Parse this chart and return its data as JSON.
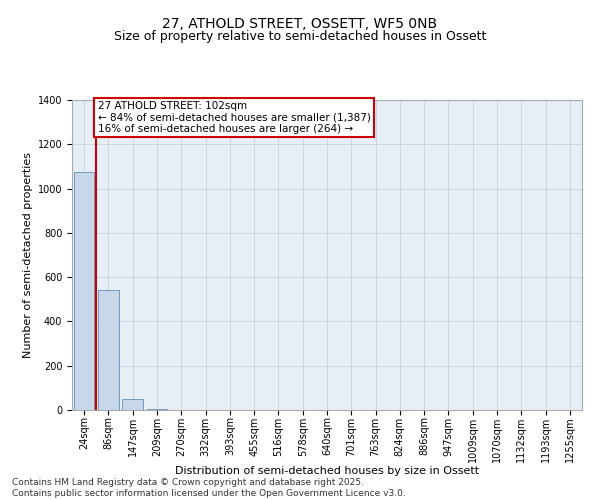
{
  "title_line1": "27, ATHOLD STREET, OSSETT, WF5 0NB",
  "title_line2": "Size of property relative to semi-detached houses in Ossett",
  "xlabel": "Distribution of semi-detached houses by size in Ossett",
  "ylabel": "Number of semi-detached properties",
  "categories": [
    "24sqm",
    "86sqm",
    "147sqm",
    "209sqm",
    "270sqm",
    "332sqm",
    "393sqm",
    "455sqm",
    "516sqm",
    "578sqm",
    "640sqm",
    "701sqm",
    "763sqm",
    "824sqm",
    "886sqm",
    "947sqm",
    "1009sqm",
    "1070sqm",
    "1132sqm",
    "1193sqm",
    "1255sqm"
  ],
  "values": [
    1075,
    540,
    50,
    5,
    2,
    1,
    0,
    0,
    0,
    0,
    0,
    0,
    0,
    0,
    0,
    0,
    0,
    0,
    0,
    0,
    0
  ],
  "bar_color": "#c8d8ea",
  "bar_edge_color": "#6090b8",
  "vline_x_index": 1,
  "vline_color": "#cc0000",
  "ylim": [
    0,
    1400
  ],
  "yticks": [
    0,
    200,
    400,
    600,
    800,
    1000,
    1200,
    1400
  ],
  "annotation_title": "27 ATHOLD STREET: 102sqm",
  "annotation_line1": "← 84% of semi-detached houses are smaller (1,387)",
  "annotation_line2": "16% of semi-detached houses are larger (264) →",
  "annotation_box_color": "#ffffff",
  "annotation_border_color": "#cc0000",
  "footnote1": "Contains HM Land Registry data © Crown copyright and database right 2025.",
  "footnote2": "Contains public sector information licensed under the Open Government Licence v3.0.",
  "bg_color": "#ffffff",
  "plot_bg_color": "#e8eef6",
  "grid_color": "#c8d0dc",
  "title_fontsize": 10,
  "subtitle_fontsize": 9,
  "axis_label_fontsize": 8,
  "tick_fontsize": 7,
  "annotation_fontsize": 7.5,
  "footnote_fontsize": 6.5
}
